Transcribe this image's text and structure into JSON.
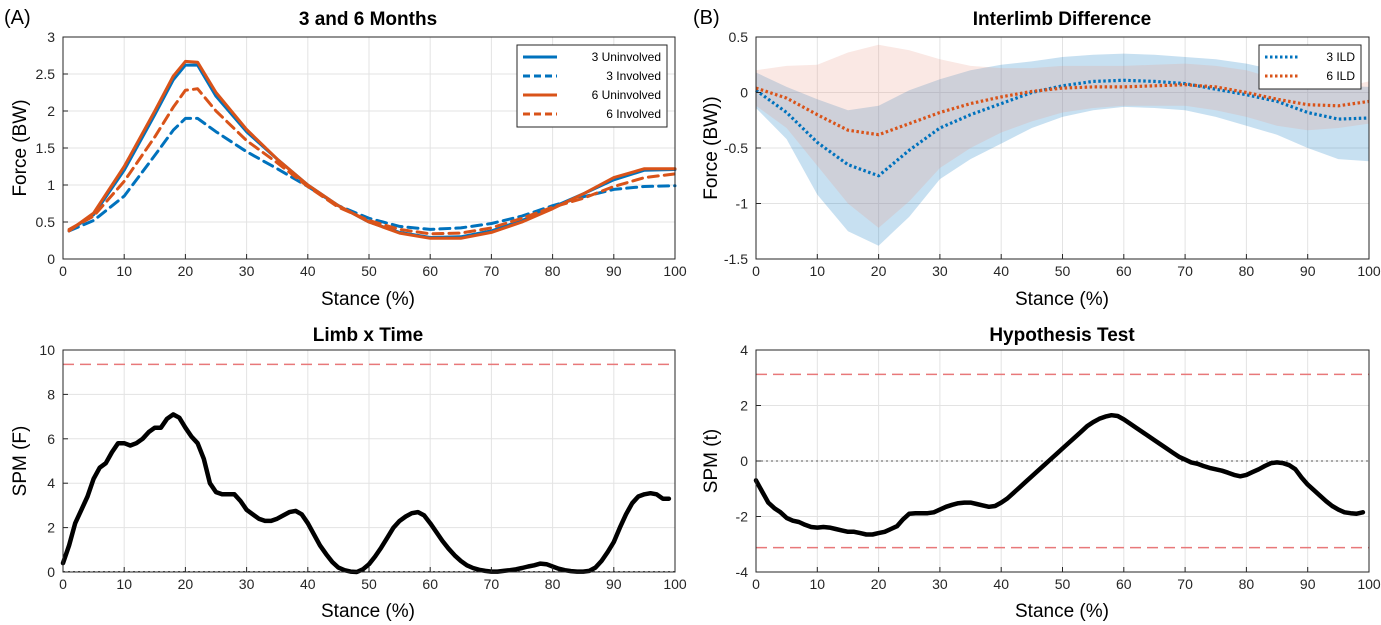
{
  "panel_labels": [
    "(A)",
    "(B)"
  ],
  "colors": {
    "blue": "#0072BD",
    "orange": "#D95319",
    "red_dash": "#e8787a",
    "black": "#000000"
  },
  "chart_data": [
    {
      "type": "line",
      "title": "3 and 6 Months",
      "xlabel": "Stance (%)",
      "ylabel": "Force (BW)",
      "xlim": [
        0,
        100
      ],
      "ylim": [
        0,
        3
      ],
      "xticks": [
        0,
        10,
        20,
        30,
        40,
        50,
        60,
        70,
        80,
        90,
        100
      ],
      "yticks": [
        0,
        0.5,
        1,
        1.5,
        2,
        2.5,
        3
      ],
      "ytick_labels": [
        "0",
        "0.5",
        "1",
        "1.5",
        "2",
        "2.5",
        "3"
      ],
      "grid": true,
      "legend_placement": "top-right",
      "series": [
        {
          "name": "3 Uninvolved",
          "color": "#0072BD",
          "style": "solid",
          "x": [
            1,
            5,
            10,
            15,
            18,
            20,
            22,
            25,
            30,
            35,
            40,
            45,
            50,
            55,
            60,
            65,
            70,
            75,
            80,
            85,
            90,
            95,
            100
          ],
          "y": [
            0.38,
            0.6,
            1.2,
            1.95,
            2.42,
            2.62,
            2.62,
            2.2,
            1.72,
            1.35,
            1.0,
            0.72,
            0.5,
            0.36,
            0.29,
            0.3,
            0.38,
            0.52,
            0.7,
            0.88,
            1.07,
            1.2,
            1.21
          ]
        },
        {
          "name": "3 Involved",
          "color": "#0072BD",
          "style": "dashed",
          "x": [
            1,
            5,
            10,
            15,
            18,
            20,
            22,
            25,
            30,
            35,
            40,
            45,
            50,
            55,
            60,
            65,
            70,
            75,
            80,
            85,
            90,
            95,
            100
          ],
          "y": [
            0.38,
            0.52,
            0.85,
            1.4,
            1.74,
            1.9,
            1.9,
            1.72,
            1.45,
            1.22,
            0.98,
            0.72,
            0.55,
            0.44,
            0.4,
            0.42,
            0.48,
            0.58,
            0.72,
            0.84,
            0.94,
            0.98,
            0.99
          ]
        },
        {
          "name": "6 Uninvolved",
          "color": "#D95319",
          "style": "solid",
          "x": [
            1,
            5,
            10,
            15,
            18,
            20,
            22,
            25,
            30,
            35,
            40,
            45,
            50,
            55,
            60,
            65,
            70,
            75,
            80,
            85,
            90,
            95,
            100
          ],
          "y": [
            0.38,
            0.62,
            1.25,
            2.0,
            2.47,
            2.67,
            2.66,
            2.25,
            1.75,
            1.35,
            1.0,
            0.72,
            0.5,
            0.35,
            0.28,
            0.28,
            0.36,
            0.5,
            0.68,
            0.88,
            1.1,
            1.22,
            1.22
          ]
        },
        {
          "name": "6 Involved",
          "color": "#D95319",
          "style": "dashed",
          "x": [
            1,
            5,
            10,
            15,
            18,
            20,
            22,
            25,
            30,
            35,
            40,
            45,
            50,
            55,
            60,
            65,
            70,
            75,
            80,
            85,
            90,
            95,
            100
          ],
          "y": [
            0.4,
            0.58,
            1.05,
            1.65,
            2.05,
            2.28,
            2.3,
            2.0,
            1.6,
            1.3,
            0.98,
            0.7,
            0.52,
            0.4,
            0.34,
            0.35,
            0.42,
            0.55,
            0.7,
            0.82,
            0.98,
            1.1,
            1.15
          ]
        }
      ]
    },
    {
      "type": "line",
      "title": "Interlimb Difference",
      "xlabel": "Stance (%)",
      "ylabel": "Force (BW))",
      "xlim": [
        0,
        100
      ],
      "ylim": [
        -1.5,
        0.5
      ],
      "xticks": [
        0,
        10,
        20,
        30,
        40,
        50,
        60,
        70,
        80,
        90,
        100
      ],
      "yticks": [
        -1.5,
        -1,
        -0.5,
        0,
        0.5
      ],
      "ytick_labels": [
        "-1.5",
        "-1",
        "-0.5",
        "0",
        "0.5"
      ],
      "grid": true,
      "legend_placement": "top-right",
      "series": [
        {
          "name": "3 ILD",
          "color": "#0072BD",
          "style": "dotted",
          "x": [
            0,
            5,
            10,
            15,
            20,
            25,
            30,
            35,
            40,
            45,
            50,
            55,
            60,
            65,
            70,
            75,
            80,
            85,
            90,
            95,
            100
          ],
          "y": [
            0.02,
            -0.18,
            -0.45,
            -0.65,
            -0.75,
            -0.52,
            -0.32,
            -0.2,
            -0.1,
            0.0,
            0.06,
            0.1,
            0.11,
            0.1,
            0.08,
            0.03,
            -0.02,
            -0.08,
            -0.18,
            -0.24,
            -0.23
          ],
          "band_upper": [
            0.18,
            0.05,
            -0.06,
            -0.16,
            -0.12,
            0.02,
            0.12,
            0.2,
            0.25,
            0.28,
            0.32,
            0.34,
            0.35,
            0.34,
            0.32,
            0.3,
            0.26,
            0.2,
            0.14,
            0.06,
            0.05
          ],
          "band_lower": [
            -0.14,
            -0.42,
            -0.92,
            -1.25,
            -1.38,
            -1.12,
            -0.78,
            -0.6,
            -0.46,
            -0.32,
            -0.22,
            -0.16,
            -0.13,
            -0.14,
            -0.16,
            -0.22,
            -0.3,
            -0.38,
            -0.5,
            -0.6,
            -0.62
          ]
        },
        {
          "name": "6 ILD",
          "color": "#D95319",
          "style": "dotted",
          "x": [
            0,
            5,
            10,
            15,
            20,
            25,
            30,
            35,
            40,
            45,
            50,
            55,
            60,
            65,
            70,
            75,
            80,
            85,
            90,
            95,
            100
          ],
          "y": [
            0.04,
            -0.05,
            -0.2,
            -0.34,
            -0.38,
            -0.28,
            -0.18,
            -0.1,
            -0.04,
            0.01,
            0.04,
            0.05,
            0.05,
            0.06,
            0.07,
            0.05,
            0.0,
            -0.06,
            -0.11,
            -0.12,
            -0.08
          ],
          "band_upper": [
            0.2,
            0.24,
            0.25,
            0.36,
            0.43,
            0.38,
            0.3,
            0.24,
            0.22,
            0.22,
            0.24,
            0.24,
            0.24,
            0.25,
            0.26,
            0.24,
            0.2,
            0.12,
            0.06,
            0.04,
            0.1
          ],
          "band_lower": [
            -0.12,
            -0.32,
            -0.66,
            -1.0,
            -1.22,
            -0.98,
            -0.68,
            -0.5,
            -0.36,
            -0.26,
            -0.18,
            -0.14,
            -0.12,
            -0.12,
            -0.12,
            -0.16,
            -0.22,
            -0.3,
            -0.34,
            -0.32,
            -0.28
          ]
        }
      ]
    },
    {
      "type": "line",
      "title": "Limb x Time",
      "xlabel": "Stance (%)",
      "ylabel": "SPM (F)",
      "xlim": [
        0,
        100
      ],
      "ylim": [
        0,
        10
      ],
      "xticks": [
        0,
        10,
        20,
        30,
        40,
        50,
        60,
        70,
        80,
        90,
        100
      ],
      "yticks": [
        0,
        2,
        4,
        6,
        8,
        10
      ],
      "ytick_labels": [
        "0",
        "2",
        "4",
        "6",
        "8",
        "10"
      ],
      "grid": true,
      "threshold": 9.35,
      "series": [
        {
          "name": "",
          "color": "#000000",
          "style": "solid",
          "x": [
            0,
            1,
            2,
            3,
            4,
            5,
            6,
            7,
            8,
            9,
            10,
            11,
            12,
            13,
            14,
            15,
            16,
            17,
            18,
            19,
            20,
            21,
            22,
            23,
            24,
            25,
            26,
            27,
            28,
            29,
            30,
            31,
            32,
            33,
            34,
            35,
            36,
            37,
            38,
            39,
            40,
            41,
            42,
            43,
            44,
            45,
            46,
            47,
            48,
            49,
            50,
            51,
            52,
            53,
            54,
            55,
            56,
            57,
            58,
            59,
            60,
            61,
            62,
            63,
            64,
            65,
            66,
            67,
            68,
            69,
            70,
            71,
            72,
            73,
            74,
            75,
            76,
            77,
            78,
            79,
            80,
            81,
            82,
            83,
            84,
            85,
            86,
            87,
            88,
            89,
            90,
            91,
            92,
            93,
            94,
            95,
            96,
            97,
            98,
            99
          ],
          "y": [
            0.4,
            1.2,
            2.2,
            2.8,
            3.4,
            4.2,
            4.7,
            4.9,
            5.4,
            5.8,
            5.8,
            5.7,
            5.8,
            6.0,
            6.3,
            6.5,
            6.5,
            6.9,
            7.1,
            6.95,
            6.5,
            6.1,
            5.8,
            5.1,
            4.0,
            3.6,
            3.5,
            3.5,
            3.5,
            3.2,
            2.8,
            2.6,
            2.4,
            2.3,
            2.3,
            2.4,
            2.55,
            2.7,
            2.75,
            2.6,
            2.2,
            1.7,
            1.2,
            0.8,
            0.45,
            0.2,
            0.08,
            0.02,
            0.0,
            0.12,
            0.35,
            0.7,
            1.1,
            1.55,
            2.0,
            2.3,
            2.5,
            2.65,
            2.7,
            2.55,
            2.2,
            1.8,
            1.4,
            1.05,
            0.75,
            0.5,
            0.3,
            0.18,
            0.1,
            0.05,
            0.02,
            0.02,
            0.05,
            0.08,
            0.12,
            0.18,
            0.25,
            0.3,
            0.38,
            0.35,
            0.25,
            0.15,
            0.08,
            0.04,
            0.02,
            0.02,
            0.05,
            0.2,
            0.5,
            0.9,
            1.35,
            2.0,
            2.6,
            3.1,
            3.4,
            3.5,
            3.55,
            3.5,
            3.3,
            3.3
          ]
        }
      ]
    },
    {
      "type": "line",
      "title": "Hypothesis Test",
      "xlabel": "Stance (%)",
      "ylabel": "SPM (t)",
      "xlim": [
        0,
        100
      ],
      "ylim": [
        -4,
        4
      ],
      "xticks": [
        0,
        10,
        20,
        30,
        40,
        50,
        60,
        70,
        80,
        90,
        100
      ],
      "yticks": [
        -4,
        -2,
        0,
        2,
        4
      ],
      "ytick_labels": [
        "-4",
        "-2",
        "0",
        "2",
        "4"
      ],
      "grid": true,
      "threshold": 3.12,
      "series": [
        {
          "name": "",
          "color": "#000000",
          "style": "solid",
          "x": [
            0,
            1,
            2,
            3,
            4,
            5,
            6,
            7,
            8,
            9,
            10,
            11,
            12,
            13,
            14,
            15,
            16,
            17,
            18,
            19,
            20,
            21,
            22,
            23,
            24,
            25,
            26,
            27,
            28,
            29,
            30,
            31,
            32,
            33,
            34,
            35,
            36,
            37,
            38,
            39,
            40,
            41,
            42,
            43,
            44,
            45,
            46,
            47,
            48,
            49,
            50,
            51,
            52,
            53,
            54,
            55,
            56,
            57,
            58,
            59,
            60,
            61,
            62,
            63,
            64,
            65,
            66,
            67,
            68,
            69,
            70,
            71,
            72,
            73,
            74,
            75,
            76,
            77,
            78,
            79,
            80,
            81,
            82,
            83,
            84,
            85,
            86,
            87,
            88,
            89,
            90,
            91,
            92,
            93,
            94,
            95,
            96,
            97,
            98,
            99
          ],
          "y": [
            -0.7,
            -1.1,
            -1.5,
            -1.7,
            -1.85,
            -2.05,
            -2.15,
            -2.2,
            -2.3,
            -2.38,
            -2.4,
            -2.38,
            -2.4,
            -2.45,
            -2.5,
            -2.55,
            -2.55,
            -2.6,
            -2.65,
            -2.65,
            -2.6,
            -2.55,
            -2.45,
            -2.35,
            -2.1,
            -1.9,
            -1.88,
            -1.88,
            -1.88,
            -1.85,
            -1.75,
            -1.65,
            -1.58,
            -1.52,
            -1.5,
            -1.5,
            -1.55,
            -1.6,
            -1.65,
            -1.62,
            -1.5,
            -1.35,
            -1.15,
            -0.95,
            -0.75,
            -0.55,
            -0.35,
            -0.15,
            0.05,
            0.25,
            0.45,
            0.65,
            0.85,
            1.05,
            1.25,
            1.4,
            1.52,
            1.6,
            1.65,
            1.62,
            1.5,
            1.35,
            1.2,
            1.05,
            0.9,
            0.75,
            0.6,
            0.45,
            0.3,
            0.15,
            0.05,
            -0.05,
            -0.1,
            -0.18,
            -0.25,
            -0.3,
            -0.35,
            -0.42,
            -0.5,
            -0.55,
            -0.5,
            -0.4,
            -0.3,
            -0.18,
            -0.08,
            -0.05,
            -0.08,
            -0.15,
            -0.3,
            -0.6,
            -0.85,
            -1.05,
            -1.25,
            -1.45,
            -1.62,
            -1.75,
            -1.85,
            -1.88,
            -1.9,
            -1.85
          ]
        }
      ]
    }
  ]
}
